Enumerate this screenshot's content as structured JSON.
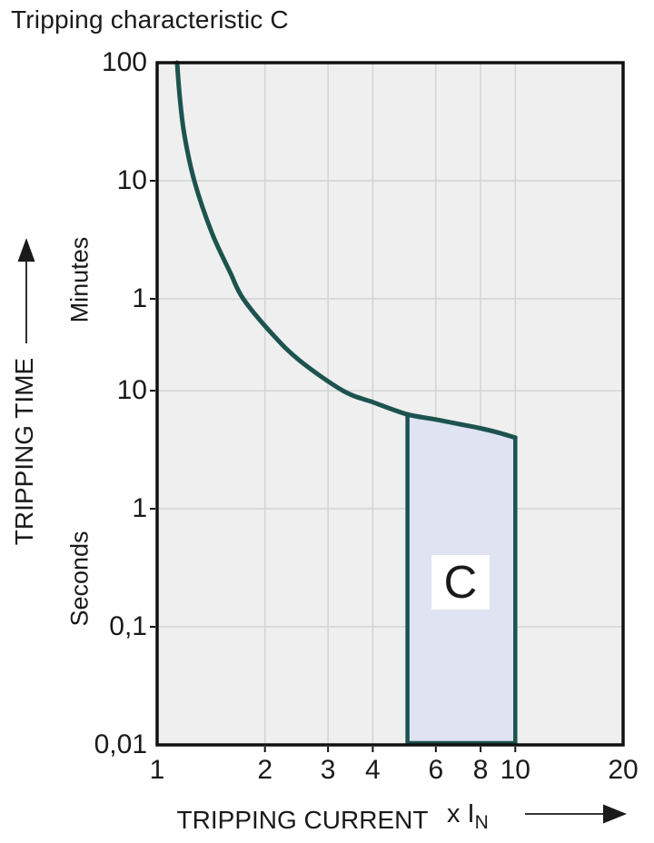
{
  "title": "Tripping characteristic C",
  "colors": {
    "curve": "#1d534f",
    "region_fill": "#dfe3f2",
    "region_border": "#1d534f",
    "plot_bg": "#efeff0",
    "grid": "#d3d4d6",
    "frame": "#111111",
    "text": "#1a1a1a"
  },
  "y_axis": {
    "label": "TRIPPING TIME",
    "arrow_icon": "up-arrow-icon",
    "unit_top": "Minutes",
    "unit_bottom": "Seconds",
    "ticks": [
      {
        "value_s": 6000,
        "label": "100"
      },
      {
        "value_s": 600,
        "label": "10"
      },
      {
        "value_s": 60,
        "label": "1"
      },
      {
        "value_s": 10,
        "label": "10"
      },
      {
        "value_s": 1,
        "label": "1"
      },
      {
        "value_s": 0.1,
        "label": "0,1"
      },
      {
        "value_s": 0.01,
        "label": "0,01"
      }
    ]
  },
  "x_axis": {
    "label": "TRIPPING CURRENT",
    "unit": "x I",
    "unit_sub": "N",
    "arrow_icon": "right-arrow-icon",
    "ticks": [
      {
        "value": 1,
        "label": "1"
      },
      {
        "value": 2,
        "label": "2"
      },
      {
        "value": 3,
        "label": "3"
      },
      {
        "value": 4,
        "label": "4"
      },
      {
        "value": 6,
        "label": "6"
      },
      {
        "value": 8,
        "label": "8"
      },
      {
        "value": 10,
        "label": "10"
      },
      {
        "value": 20,
        "label": "20"
      }
    ]
  },
  "chart_data": {
    "type": "line",
    "title": "Tripping characteristic C",
    "xlabel": "TRIPPING CURRENT x IN",
    "ylabel": "TRIPPING TIME (Minutes / Seconds)",
    "x_scale": "log",
    "y_scale": "log",
    "xlim": [
      1,
      20
    ],
    "ylim_seconds": [
      0.01,
      6000
    ],
    "grid": true,
    "x_gridlines": [
      2,
      3,
      4,
      6,
      8,
      10
    ],
    "y_gridlines_seconds": [
      600,
      60,
      10,
      1,
      0.1
    ],
    "series": [
      {
        "name": "trip-curve",
        "points_multiple_of_In_vs_seconds": [
          [
            1.137,
            6000
          ],
          [
            1.155,
            3200
          ],
          [
            1.19,
            1500
          ],
          [
            1.27,
            600
          ],
          [
            1.42,
            220
          ],
          [
            1.6,
            100
          ],
          [
            1.74,
            60
          ],
          [
            2.1,
            30
          ],
          [
            2.5,
            18
          ],
          [
            3.3,
            10
          ],
          [
            4,
            8
          ],
          [
            5,
            6.3
          ],
          [
            6,
            5.7
          ],
          [
            7,
            5.2
          ],
          [
            8,
            4.8
          ],
          [
            9,
            4.4
          ],
          [
            10,
            4
          ]
        ]
      }
    ],
    "region": {
      "label": "C",
      "x_range": [
        5,
        10
      ],
      "bottom_seconds": 0.01,
      "top_follows_curve_from_seconds": 6.3,
      "top_follows_curve_to_seconds": 4
    }
  }
}
